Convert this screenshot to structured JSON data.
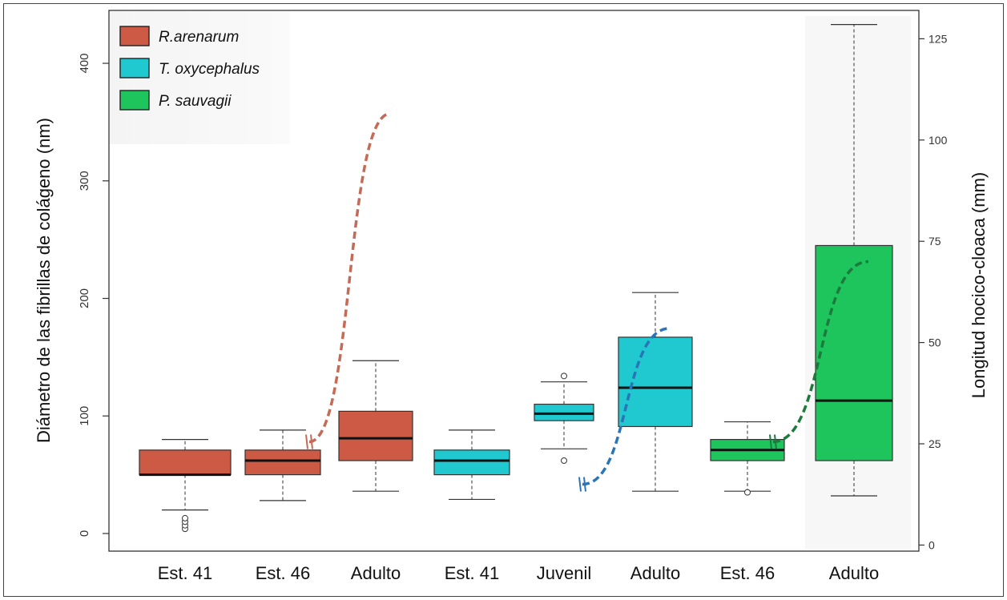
{
  "chart_data": {
    "type": "box",
    "title": "",
    "ylabel": "Diámetro de las fibrillas de colágeno (nm)",
    "y2label": "Longitud hocico-cloaca (mm)",
    "ylim": [
      -15,
      445
    ],
    "yticks": [
      0,
      100,
      200,
      300,
      400
    ],
    "y2lim": [
      -1.5,
      132
    ],
    "y2ticks": [
      0,
      25,
      50,
      75,
      100,
      125
    ],
    "legend_position": "top-left",
    "legend": [
      {
        "label": "R.arenarum",
        "color": "#CC5A45"
      },
      {
        "label": "T. oxycephalus",
        "color": "#1FC9CF"
      },
      {
        "label": "P. sauvagii",
        "color": "#1DC55C"
      }
    ],
    "categories": [
      "Est. 41",
      "Est. 46",
      "Adulto",
      "Est. 41",
      "Juvenil",
      "Adulto",
      "Est. 46",
      "Adulto"
    ],
    "boxes": [
      {
        "category": "Est. 41",
        "species": 0,
        "whisker_low": 20,
        "q1": 50,
        "median": 50,
        "q3": 71,
        "whisker_high": 80,
        "outliers": [
          4,
          7,
          10,
          13
        ]
      },
      {
        "category": "Est. 46",
        "species": 0,
        "whisker_low": 28,
        "q1": 50,
        "median": 62,
        "q3": 71,
        "whisker_high": 88,
        "outliers": []
      },
      {
        "category": "Adulto",
        "species": 0,
        "whisker_low": 36,
        "q1": 62,
        "median": 81,
        "q3": 104,
        "whisker_high": 147,
        "outliers": []
      },
      {
        "category": "Est. 41",
        "species": 1,
        "whisker_low": 29,
        "q1": 50,
        "median": 62,
        "q3": 71,
        "whisker_high": 88,
        "outliers": []
      },
      {
        "category": "Juvenil",
        "species": 1,
        "whisker_low": 72,
        "q1": 96,
        "median": 102,
        "q3": 110,
        "whisker_high": 129,
        "outliers": [
          62,
          134
        ]
      },
      {
        "category": "Adulto",
        "species": 1,
        "whisker_low": 36,
        "q1": 91,
        "median": 124,
        "q3": 167,
        "whisker_high": 205,
        "outliers": []
      },
      {
        "category": "Est. 46",
        "species": 2,
        "whisker_low": 36,
        "q1": 62,
        "median": 71,
        "q3": 80,
        "whisker_high": 95,
        "outliers": [
          35
        ]
      },
      {
        "category": "Adulto",
        "species": 2,
        "whisker_low": 32,
        "q1": 62,
        "median": 113,
        "q3": 245,
        "whisker_high": 433,
        "outliers": []
      }
    ],
    "growth_curves": [
      {
        "species": 0,
        "color": "#C46A56",
        "x_from": 1,
        "x_to": 2,
        "y2_from": 25.5,
        "y2_to": 106.5
      },
      {
        "species": 1,
        "color": "#2A74B8",
        "x_from": 4,
        "x_to": 5,
        "y2_from": 15,
        "y2_to": 53.5
      },
      {
        "species": 2,
        "color": "#1C7A3C",
        "x_from": 6,
        "x_to": 7,
        "y2_from": 25.5,
        "y2_to": 70
      }
    ]
  }
}
